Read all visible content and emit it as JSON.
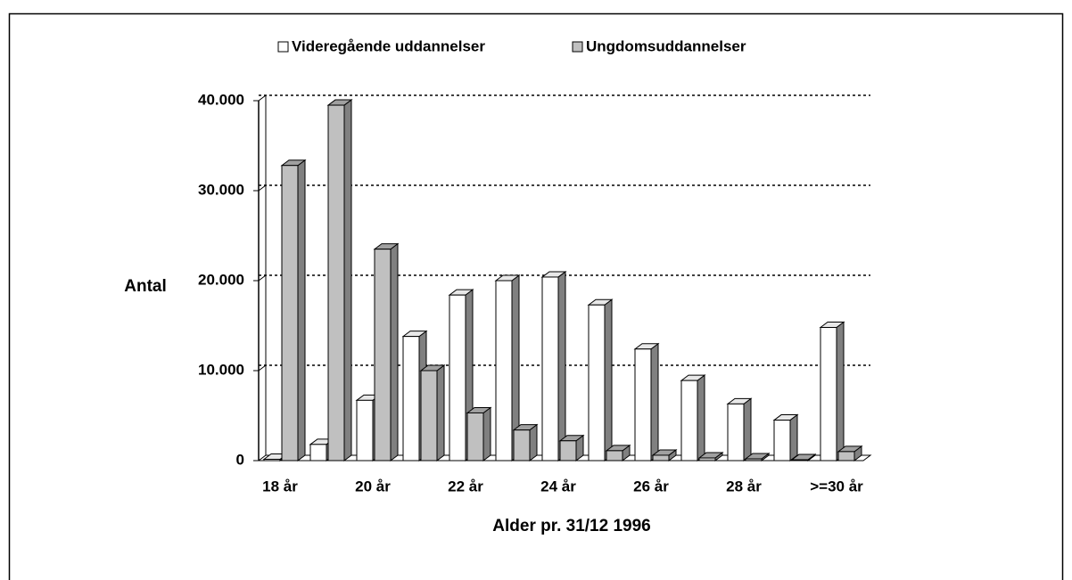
{
  "chart_data": {
    "type": "bar3d",
    "y_label": "Antal",
    "x_label": "Alder pr. 31/12 1996",
    "categories": [
      "18 år",
      null,
      "20 år",
      null,
      "22 år",
      null,
      "24 år",
      null,
      "26 år",
      null,
      "28 år",
      null,
      ">=30 år"
    ],
    "series": [
      {
        "name": "Videregående uddannelser",
        "color": "#ffffff",
        "values": [
          150,
          1800,
          6700,
          13800,
          18400,
          20000,
          20400,
          17300,
          12400,
          8900,
          6300,
          4500,
          14800
        ]
      },
      {
        "name": "Ungdomsuddannelser",
        "color": "#c0c0c0",
        "values": [
          32800,
          39500,
          23500,
          10000,
          5300,
          3400,
          2200,
          1100,
          600,
          300,
          200,
          100,
          1000
        ]
      }
    ],
    "ylim": [
      0,
      40000
    ],
    "yticks": [
      0,
      {
        "value": 10000,
        "label": "10.000"
      },
      {
        "value": 20000,
        "label": "20.000"
      },
      {
        "value": 30000,
        "label": "30.000"
      },
      {
        "value": 40000,
        "label": "40.000"
      }
    ],
    "grid": true,
    "legend": "top"
  }
}
